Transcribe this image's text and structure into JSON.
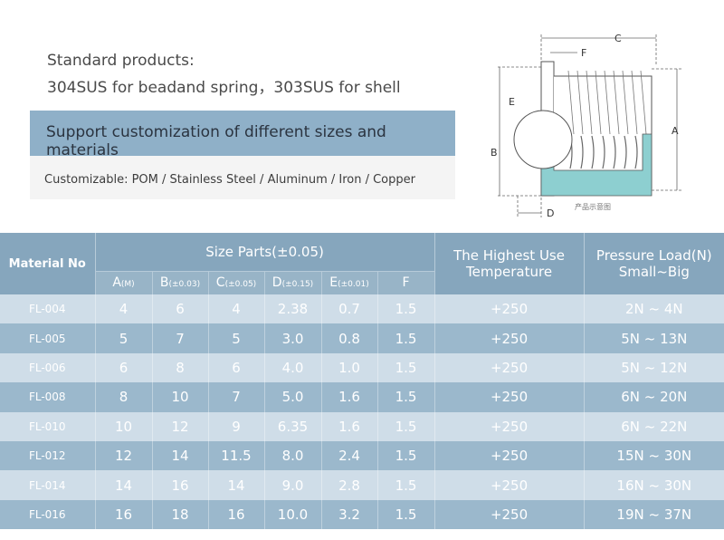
{
  "intro": {
    "line1": "Standard products:",
    "line2": "304SUS for beadand spring，303SUS for shell"
  },
  "banner": "Support customization of different sizes and materials",
  "customizable": "Customizable: POM / Stainless Steel / Aluminum / Iron / Copper",
  "diagram": {
    "labels": {
      "a": "A",
      "b": "B",
      "c": "C",
      "d": "D",
      "e": "E",
      "f": "F"
    },
    "caption": "产品示意图"
  },
  "table": {
    "material_header": "Material No",
    "size_header": "Size Parts(±0.05)",
    "temp_header_1": "The Highest Use",
    "temp_header_2": "Temperature",
    "load_header_1": "Pressure Load(N)",
    "load_header_2": "Small~Big",
    "columns": [
      {
        "letter": "A",
        "tol": "(M)"
      },
      {
        "letter": "B",
        "tol": "(±0.03)"
      },
      {
        "letter": "C",
        "tol": "(±0.05)"
      },
      {
        "letter": "D",
        "tol": "(±0.15)"
      },
      {
        "letter": "E",
        "tol": "(±0.01)"
      },
      {
        "letter": "F",
        "tol": ""
      }
    ],
    "rows": [
      {
        "mat": "FL-004",
        "a": "4",
        "b": "6",
        "c": "4",
        "d": "2.38",
        "e": "0.7",
        "f": "1.5",
        "temp": "+250",
        "load": "2N ~ 4N"
      },
      {
        "mat": "FL-005",
        "a": "5",
        "b": "7",
        "c": "5",
        "d": "3.0",
        "e": "0.8",
        "f": "1.5",
        "temp": "+250",
        "load": "5N ~ 13N"
      },
      {
        "mat": "FL-006",
        "a": "6",
        "b": "8",
        "c": "6",
        "d": "4.0",
        "e": "1.0",
        "f": "1.5",
        "temp": "+250",
        "load": "5N ~ 12N"
      },
      {
        "mat": "FL-008",
        "a": "8",
        "b": "10",
        "c": "7",
        "d": "5.0",
        "e": "1.6",
        "f": "1.5",
        "temp": "+250",
        "load": "6N ~ 20N"
      },
      {
        "mat": "FL-010",
        "a": "10",
        "b": "12",
        "c": "9",
        "d": "6.35",
        "e": "1.6",
        "f": "1.5",
        "temp": "+250",
        "load": "6N ~ 22N"
      },
      {
        "mat": "FL-012",
        "a": "12",
        "b": "14",
        "c": "11.5",
        "d": "8.0",
        "e": "2.4",
        "f": "1.5",
        "temp": "+250",
        "load": "15N ~ 30N"
      },
      {
        "mat": "FL-014",
        "a": "14",
        "b": "16",
        "c": "14",
        "d": "9.0",
        "e": "2.8",
        "f": "1.5",
        "temp": "+250",
        "load": "16N ~ 30N"
      },
      {
        "mat": "FL-016",
        "a": "16",
        "b": "18",
        "c": "16",
        "d": "10.0",
        "e": "3.2",
        "f": "1.5",
        "temp": "+250",
        "load": "19N ~ 37N"
      }
    ]
  }
}
